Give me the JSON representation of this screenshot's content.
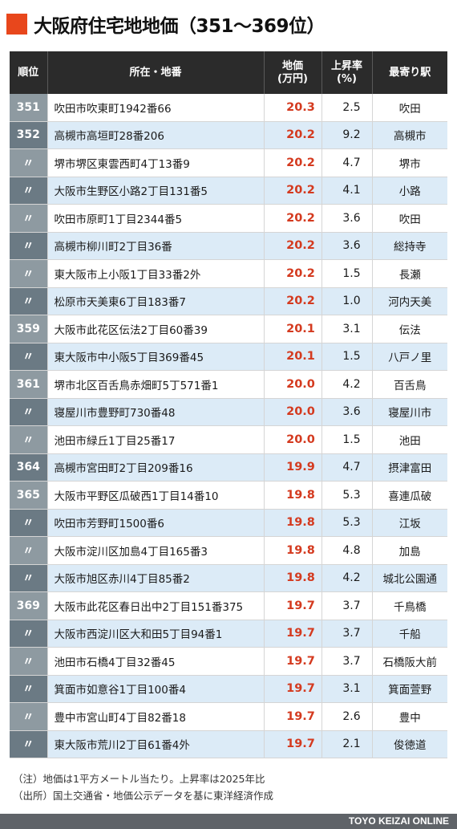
{
  "title": "大阪府住宅地地価（351〜369位）",
  "header": {
    "rank": "順位",
    "address": "所在・地番",
    "price_line1": "地価",
    "price_line2": "(万円)",
    "rate_line1": "上昇率",
    "rate_line2": "(%)",
    "station": "最寄り駅"
  },
  "rows": [
    {
      "rank": "351",
      "address": "吹田市吹東町1942番66",
      "price": "20.3",
      "rate": "2.5",
      "station": "吹田"
    },
    {
      "rank": "352",
      "address": "高槻市高垣町28番206",
      "price": "20.2",
      "rate": "9.2",
      "station": "高槻市"
    },
    {
      "rank": "〃",
      "address": "堺市堺区東雲西町4丁13番9",
      "price": "20.2",
      "rate": "4.7",
      "station": "堺市"
    },
    {
      "rank": "〃",
      "address": "大阪市生野区小路2丁目131番5",
      "price": "20.2",
      "rate": "4.1",
      "station": "小路"
    },
    {
      "rank": "〃",
      "address": "吹田市原町1丁目2344番5",
      "price": "20.2",
      "rate": "3.6",
      "station": "吹田"
    },
    {
      "rank": "〃",
      "address": "高槻市柳川町2丁目36番",
      "price": "20.2",
      "rate": "3.6",
      "station": "総持寺"
    },
    {
      "rank": "〃",
      "address": "東大阪市上小阪1丁目33番2外",
      "price": "20.2",
      "rate": "1.5",
      "station": "長瀬"
    },
    {
      "rank": "〃",
      "address": "松原市天美東6丁目183番7",
      "price": "20.2",
      "rate": "1.0",
      "station": "河内天美"
    },
    {
      "rank": "359",
      "address": "大阪市此花区伝法2丁目60番39",
      "price": "20.1",
      "rate": "3.1",
      "station": "伝法"
    },
    {
      "rank": "〃",
      "address": "東大阪市中小阪5丁目369番45",
      "price": "20.1",
      "rate": "1.5",
      "station": "八戸ノ里"
    },
    {
      "rank": "361",
      "address": "堺市北区百舌鳥赤畑町5丁571番1",
      "price": "20.0",
      "rate": "4.2",
      "station": "百舌鳥"
    },
    {
      "rank": "〃",
      "address": "寝屋川市豊野町730番48",
      "price": "20.0",
      "rate": "3.6",
      "station": "寝屋川市"
    },
    {
      "rank": "〃",
      "address": "池田市緑丘1丁目25番17",
      "price": "20.0",
      "rate": "1.5",
      "station": "池田"
    },
    {
      "rank": "364",
      "address": "高槻市宮田町2丁目209番16",
      "price": "19.9",
      "rate": "4.7",
      "station": "摂津富田"
    },
    {
      "rank": "365",
      "address": "大阪市平野区瓜破西1丁目14番10",
      "price": "19.8",
      "rate": "5.3",
      "station": "喜連瓜破"
    },
    {
      "rank": "〃",
      "address": "吹田市芳野町1500番6",
      "price": "19.8",
      "rate": "5.3",
      "station": "江坂"
    },
    {
      "rank": "〃",
      "address": "大阪市淀川区加島4丁目165番3",
      "price": "19.8",
      "rate": "4.8",
      "station": "加島"
    },
    {
      "rank": "〃",
      "address": "大阪市旭区赤川4丁目85番2",
      "price": "19.8",
      "rate": "4.2",
      "station": "城北公園通"
    },
    {
      "rank": "369",
      "address": "大阪市此花区春日出中2丁目151番375",
      "price": "19.7",
      "rate": "3.7",
      "station": "千鳥橋"
    },
    {
      "rank": "〃",
      "address": "大阪市西淀川区大和田5丁目94番1",
      "price": "19.7",
      "rate": "3.7",
      "station": "千船"
    },
    {
      "rank": "〃",
      "address": "池田市石橋4丁目32番45",
      "price": "19.7",
      "rate": "3.7",
      "station": "石橋阪大前"
    },
    {
      "rank": "〃",
      "address": "箕面市如意谷1丁目100番4",
      "price": "19.7",
      "rate": "3.1",
      "station": "箕面萱野"
    },
    {
      "rank": "〃",
      "address": "豊中市宮山町4丁目82番18",
      "price": "19.7",
      "rate": "2.6",
      "station": "豊中"
    },
    {
      "rank": "〃",
      "address": "東大阪市荒川2丁目61番4外",
      "price": "19.7",
      "rate": "2.1",
      "station": "俊徳道"
    }
  ],
  "notes": {
    "note1": "（注）地価は1平方メートル当たり。上昇率は2025年比",
    "note2": "（出所）国土交通省・地価公示データを基に東洋経済作成"
  },
  "footer": "TOYO KEIZAI ONLINE",
  "colors": {
    "accent": "#e8471c",
    "price": "#d43a1f",
    "header_bg": "#2b2b2b",
    "row_alt": "#dcebf7",
    "rank_bg": "#8e9aa1"
  }
}
